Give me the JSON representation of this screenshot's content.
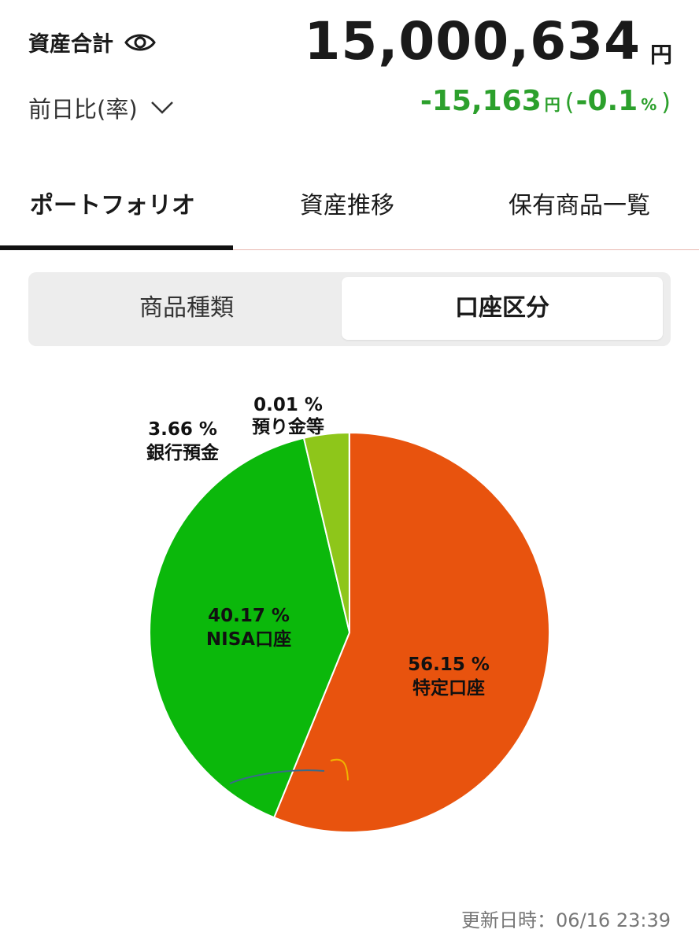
{
  "header": {
    "total_label": "資産合計",
    "total_value": "15,000,634",
    "total_unit": "円",
    "diff_label": "前日比(率)",
    "diff_value": "-15,163",
    "diff_unit": "円",
    "diff_paren_open": "(",
    "diff_rate": "-0.1",
    "diff_rate_unit": "%",
    "diff_paren_close": ")",
    "diff_color": "#2ca02c"
  },
  "tabs": [
    {
      "label": "ポートフォリオ",
      "active": true
    },
    {
      "label": "資産推移",
      "active": false
    },
    {
      "label": "保有商品一覧",
      "active": false
    }
  ],
  "segment": {
    "options": [
      {
        "label": "商品種類",
        "selected": false
      },
      {
        "label": "口座区分",
        "selected": true
      }
    ]
  },
  "chart_data": {
    "type": "pie",
    "slices": [
      {
        "label": "特定口座",
        "percent_text": "56.15 %",
        "value": 56.15,
        "color": "#e8530e"
      },
      {
        "label": "NISA口座",
        "percent_text": "40.17 %",
        "value": 40.17,
        "color": "#0bb80b"
      },
      {
        "label": "銀行預金",
        "percent_text": "3.66 %",
        "value": 3.66,
        "color": "#8ec61a"
      },
      {
        "label": "預り金等",
        "percent_text": "0.01 %",
        "value": 0.01,
        "color": "#f0b400"
      }
    ]
  },
  "footer": {
    "updated_label": "更新日時：",
    "updated_value": "06/16 23:39"
  }
}
